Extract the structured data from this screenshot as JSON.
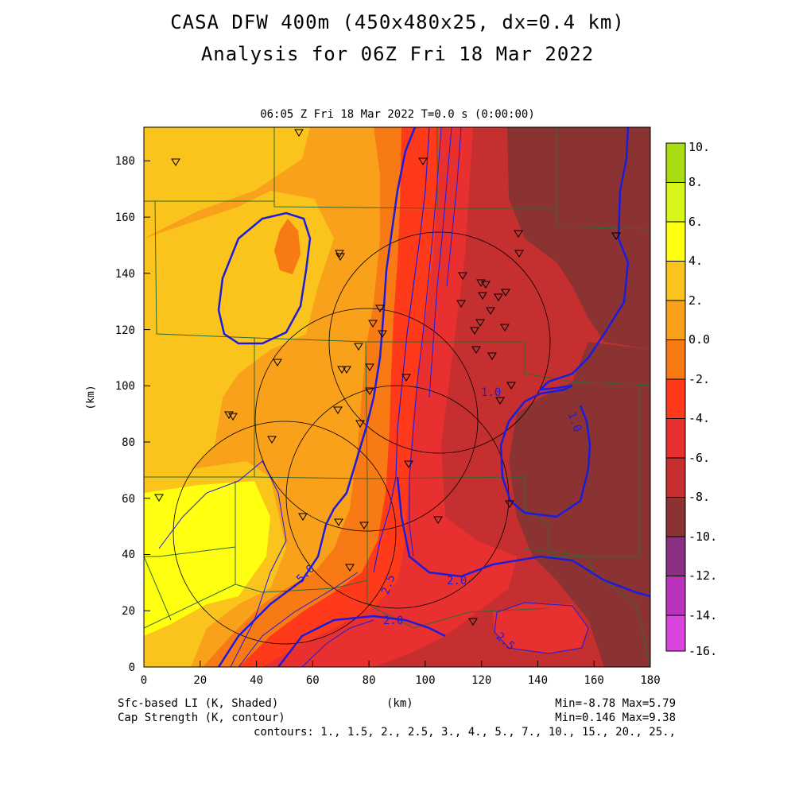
{
  "header": {
    "title_line1": "CASA DFW 400m (450x480x25, dx=0.4 km)",
    "title_line2": "Analysis for 06Z Fri 18 Mar 2022",
    "valid_time": "06:05 Z Fri 18 Mar 2022   T=0.0 s (0:00:00)"
  },
  "axes": {
    "x_unit": "(km)",
    "y_unit": "(km)",
    "x_ticks": [
      "0",
      "20",
      "40",
      "60",
      "80",
      "100",
      "120",
      "140",
      "160",
      "180"
    ],
    "y_ticks": [
      "0",
      "20",
      "40",
      "60",
      "80",
      "100",
      "120",
      "140",
      "160",
      "180"
    ]
  },
  "colorbar": {
    "labels": [
      "10.",
      "8.",
      "6.",
      "4.",
      "2.",
      "0.0",
      "-2.",
      "-4.",
      "-6.",
      "-8.",
      "-10.",
      "-12.",
      "-14.",
      "-16."
    ],
    "colors": [
      "#aadd11",
      "#d8f51a",
      "#ffff10",
      "#fac41c",
      "#f9a11a",
      "#f77a15",
      "#ff3a1a",
      "#e83030",
      "#c62f2f",
      "#8b3333",
      "#8a2f82",
      "#bb33bb",
      "#d945dc"
    ]
  },
  "contour_labels": [
    "1.0",
    "1.0",
    "2.0",
    "2.0",
    "2.5",
    "2.5",
    "5.0"
  ],
  "footer": {
    "left_line1": "Sfc-based LI (K, Shaded)",
    "left_line2": "Cap Strength (K, contour)",
    "center": "(km)",
    "right_line1": "Min=-8.78 Max=5.79",
    "right_line2": "Min=0.146 Max=9.38",
    "contours": "contours: 1., 1.5, 2., 2.5, 3., 4., 5., 7., 10., 15., 20., 25.,"
  },
  "colors": {
    "contour": "#1c1cdd",
    "county_lines": "#2f6b2f",
    "radar_rings": "#000000"
  }
}
